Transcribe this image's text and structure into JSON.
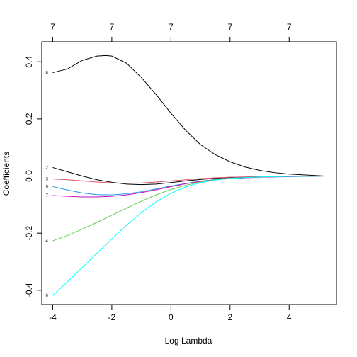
{
  "chart_data": {
    "type": "line",
    "title": "",
    "xlabel": "Log Lambda",
    "ylabel": "Coefficients",
    "xlim": [
      -4.37,
      5.6
    ],
    "ylim": [
      -0.45,
      0.47
    ],
    "x_ticks": [
      -4,
      -2,
      0,
      2,
      4
    ],
    "x_tick_labels": [
      "-4",
      "-2",
      "0",
      "2",
      "4"
    ],
    "y_ticks": [
      -0.4,
      -0.2,
      0.0,
      0.2,
      0.4
    ],
    "y_tick_labels": [
      "-0.4",
      "-0.2",
      "0.0",
      "0.2",
      "0.4"
    ],
    "top_ticks": [
      -4,
      -2,
      0,
      2,
      4
    ],
    "top_tick_labels": [
      "7",
      "7",
      "7",
      "7",
      "7"
    ],
    "grid": false,
    "series": [
      {
        "label": "8",
        "color": "#000000",
        "x": [
          -4,
          -3.5,
          -3,
          -2.5,
          -2.2,
          -2,
          -1.5,
          -1,
          -0.5,
          0,
          0.5,
          1,
          1.5,
          2,
          2.5,
          3,
          3.5,
          4,
          4.5,
          5.2
        ],
        "y": [
          0.362,
          0.375,
          0.405,
          0.42,
          0.422,
          0.42,
          0.395,
          0.345,
          0.285,
          0.22,
          0.16,
          0.11,
          0.075,
          0.05,
          0.032,
          0.02,
          0.012,
          0.007,
          0.004,
          0.0
        ]
      },
      {
        "label": "2",
        "color": "#000000",
        "x": [
          -4,
          -3.5,
          -3,
          -2.5,
          -2,
          -1.5,
          -1,
          -0.5,
          0,
          0.5,
          1,
          1.5,
          2,
          3,
          4,
          5.2
        ],
        "y": [
          0.03,
          0.015,
          0.0,
          -0.013,
          -0.022,
          -0.028,
          -0.03,
          -0.028,
          -0.023,
          -0.017,
          -0.012,
          -0.008,
          -0.005,
          -0.002,
          -0.001,
          0.0
        ]
      },
      {
        "label": "3",
        "color": "#DF536B",
        "x": [
          -4,
          -3.5,
          -3,
          -2.5,
          -2,
          -1.5,
          -1,
          -0.5,
          0,
          0.5,
          1,
          1.5,
          2,
          3,
          4,
          5.2
        ],
        "y": [
          -0.01,
          -0.013,
          -0.017,
          -0.021,
          -0.024,
          -0.025,
          -0.024,
          -0.021,
          -0.017,
          -0.013,
          -0.009,
          -0.006,
          -0.004,
          -0.002,
          -0.001,
          0.0
        ]
      },
      {
        "label": "5",
        "color": "#2297E6",
        "x": [
          -4,
          -3.5,
          -3,
          -2.5,
          -2,
          -1.5,
          -1,
          -0.5,
          0,
          0.5,
          1,
          1.5,
          2,
          3,
          4,
          5.2
        ],
        "y": [
          -0.037,
          -0.049,
          -0.059,
          -0.065,
          -0.066,
          -0.062,
          -0.055,
          -0.045,
          -0.035,
          -0.026,
          -0.018,
          -0.012,
          -0.008,
          -0.004,
          -0.002,
          0.0
        ]
      },
      {
        "label": "7",
        "color": "#CD0BBC",
        "x": [
          -4,
          -3.5,
          -3,
          -2.5,
          -2,
          -1.5,
          -1,
          -0.5,
          0,
          0.5,
          1,
          1.5,
          2,
          3,
          4,
          5.2
        ],
        "y": [
          -0.068,
          -0.071,
          -0.073,
          -0.073,
          -0.071,
          -0.066,
          -0.058,
          -0.048,
          -0.037,
          -0.027,
          -0.019,
          -0.013,
          -0.009,
          -0.004,
          -0.002,
          0.0
        ]
      },
      {
        "label": "4",
        "color": "#61D04F",
        "x": [
          -4,
          -3.5,
          -3,
          -2.5,
          -2,
          -1.5,
          -1,
          -0.5,
          0,
          0.5,
          1,
          1.5,
          2,
          3,
          4,
          5.2
        ],
        "y": [
          -0.227,
          -0.208,
          -0.186,
          -0.162,
          -0.137,
          -0.112,
          -0.088,
          -0.066,
          -0.047,
          -0.032,
          -0.021,
          -0.013,
          -0.008,
          -0.003,
          -0.001,
          0.0
        ]
      },
      {
        "label": "6",
        "color": "#00FFFF",
        "x": [
          -4,
          -3.5,
          -3,
          -2.5,
          -2,
          -1.5,
          -1,
          -0.5,
          0,
          0.5,
          1,
          1.5,
          2,
          3,
          4,
          5.2
        ],
        "y": [
          -0.418,
          -0.37,
          -0.32,
          -0.27,
          -0.22,
          -0.172,
          -0.128,
          -0.09,
          -0.06,
          -0.038,
          -0.023,
          -0.014,
          -0.008,
          -0.003,
          -0.001,
          0.0
        ]
      }
    ]
  }
}
